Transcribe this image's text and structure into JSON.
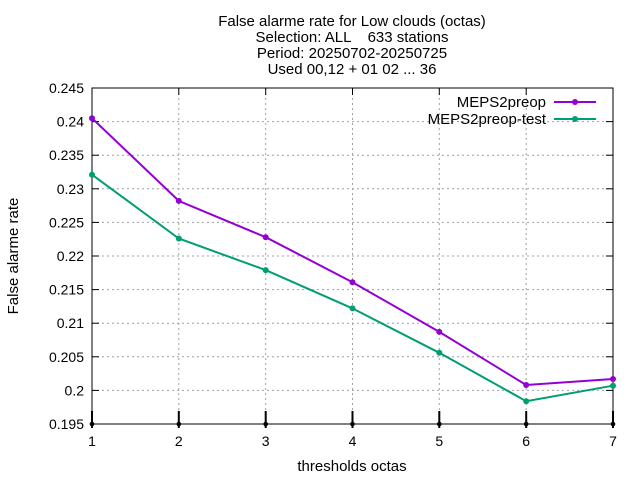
{
  "chart_data": {
    "type": "line",
    "title_lines": [
      "False alarme rate  for Low clouds (octas)",
      "Selection: ALL    633 stations",
      "Period: 20250702-20250725",
      "Used 00,12 + 01 02 ... 36"
    ],
    "xlabel": "thresholds octas",
    "ylabel": "False alarme rate",
    "x": [
      1,
      2,
      3,
      4,
      5,
      6,
      7
    ],
    "xlim": [
      1,
      7
    ],
    "ylim": [
      0.195,
      0.245
    ],
    "x_ticks": [
      1,
      2,
      3,
      4,
      5,
      6,
      7
    ],
    "x_tick_labels": [
      "1",
      "2",
      "3",
      "4",
      "5",
      "6",
      "7"
    ],
    "y_ticks": [
      0.195,
      0.2,
      0.205,
      0.21,
      0.215,
      0.22,
      0.225,
      0.23,
      0.235,
      0.24,
      0.245
    ],
    "y_tick_labels": [
      "0.195",
      "0.2",
      "0.205",
      "0.21",
      "0.215",
      "0.22",
      "0.225",
      "0.23",
      "0.235",
      "0.24",
      "0.245"
    ],
    "grid": true,
    "legend_position": "top-right",
    "series": [
      {
        "name": "MEPS2preop",
        "color": "#9400d3",
        "values": [
          0.2405,
          0.2282,
          0.2228,
          0.2161,
          0.2087,
          0.2008,
          0.2017
        ]
      },
      {
        "name": "MEPS2preop-test",
        "color": "#009e73",
        "values": [
          0.2321,
          0.2226,
          0.2179,
          0.2122,
          0.2056,
          0.1984,
          0.2007
        ]
      }
    ]
  }
}
